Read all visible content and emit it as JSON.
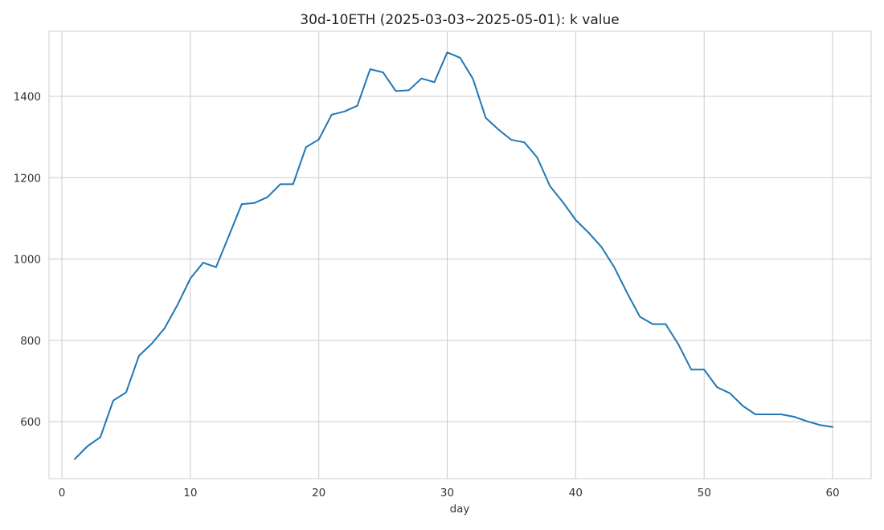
{
  "chart_data": {
    "type": "line",
    "title": "30d-10ETH (2025-03-03~2025-05-01): k value",
    "xlabel": "day",
    "ylabel": "",
    "xlim": [
      -1,
      63
    ],
    "ylim": [
      460,
      1560
    ],
    "xticks": [
      0,
      10,
      20,
      30,
      40,
      50,
      60
    ],
    "yticks": [
      600,
      800,
      1000,
      1200,
      1400
    ],
    "grid": true,
    "line_color": "#1f77b4",
    "series": [
      {
        "x": [
          1,
          2,
          3,
          4,
          5,
          6,
          7,
          8,
          9,
          10,
          11,
          12,
          13,
          14,
          15,
          16,
          17,
          18,
          19,
          20,
          21,
          22,
          23,
          24,
          25,
          26,
          27,
          28,
          29,
          30,
          31,
          32,
          33,
          34,
          35,
          36,
          37,
          38,
          39,
          40,
          41,
          42,
          43,
          44,
          45,
          46,
          47,
          48,
          49,
          50,
          51,
          52,
          53,
          54,
          55,
          56,
          57,
          58,
          59,
          60
        ],
        "values": [
          508,
          540,
          562,
          652,
          672,
          762,
          792,
          830,
          887,
          952,
          991,
          980,
          1057,
          1135,
          1138,
          1152,
          1184,
          1184,
          1275,
          1294,
          1355,
          1363,
          1377,
          1467,
          1459,
          1413,
          1415,
          1444,
          1435,
          1508,
          1495,
          1443,
          1347,
          1318,
          1293,
          1287,
          1250,
          1179,
          1140,
          1096,
          1065,
          1030,
          980,
          917,
          858,
          840,
          840,
          790,
          728,
          728,
          685,
          670,
          639,
          618,
          618,
          618,
          612,
          601,
          592,
          587
        ]
      }
    ]
  }
}
